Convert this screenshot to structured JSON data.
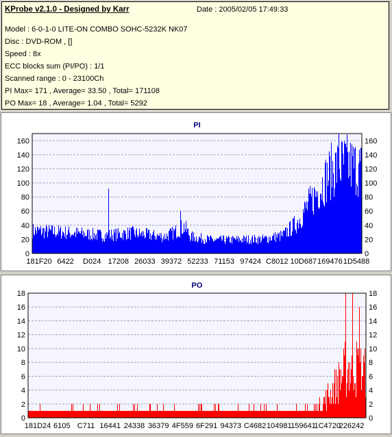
{
  "header": {
    "title": "KProbe v2.1.0 - Designed by Karr",
    "date": "Date : 2005/02/05 17:49:33",
    "lines": [
      "Model : 6-0-1-0 LITE-ON COMBO SOHC-5232K NK07",
      "Disc : DVD-ROM ,  []",
      "Speed : 8x",
      "ECC blocks sum (PI/PO) : 1/1",
      "Scanned range : 0 - 23100Ch",
      "PI Max= 171 , Average= 33.50 , Total= 171108",
      "PO Max= 18 , Average= 1.04 , Total= 5292"
    ]
  },
  "chart_data": [
    {
      "type": "bar",
      "title": "PI",
      "color": "#0000ff",
      "ylim": [
        0,
        170
      ],
      "yticks": [
        0,
        20,
        40,
        60,
        80,
        100,
        120,
        140,
        160
      ],
      "xtick_labels": [
        "181F20",
        "6422",
        "D024",
        "17208",
        "26033",
        "39372",
        "52233",
        "71153",
        "97424",
        "C8012",
        "10D687",
        "169476",
        "1D5488"
      ],
      "profile": [
        [
          0,
          38
        ],
        [
          0.1,
          35
        ],
        [
          0.22,
          30
        ],
        [
          0.3,
          34
        ],
        [
          0.4,
          28
        ],
        [
          0.43,
          35
        ],
        [
          0.46,
          45
        ],
        [
          0.48,
          28
        ],
        [
          0.55,
          22
        ],
        [
          0.7,
          24
        ],
        [
          0.76,
          30
        ],
        [
          0.8,
          50
        ],
        [
          0.86,
          100
        ],
        [
          0.91,
          140
        ],
        [
          0.95,
          150
        ],
        [
          1,
          140
        ]
      ],
      "spikes": [
        [
          0.23,
          92
        ],
        [
          0.45,
          60
        ],
        [
          0.93,
          171
        ]
      ],
      "grid": true,
      "stats": {
        "max": 171,
        "average": 33.5,
        "total": 171108
      }
    },
    {
      "type": "bar",
      "title": "PO",
      "color": "#ff0000",
      "ylim": [
        0,
        18
      ],
      "yticks": [
        0,
        2,
        4,
        6,
        8,
        10,
        12,
        14,
        16,
        18
      ],
      "xtick_labels": [
        "181D24",
        "6105",
        "C711",
        "16441",
        "24338",
        "36379",
        "4F559",
        "6F291",
        "94373",
        "C4682",
        "104981",
        "159641",
        "1C4720",
        "226242"
      ],
      "profile": [
        [
          0,
          1
        ],
        [
          0.82,
          1
        ],
        [
          0.86,
          2
        ],
        [
          0.9,
          5
        ],
        [
          0.93,
          8
        ],
        [
          0.96,
          10
        ],
        [
          1,
          8
        ]
      ],
      "spikes": [
        [
          0.94,
          18
        ],
        [
          0.96,
          18
        ],
        [
          0.98,
          16
        ]
      ],
      "grid": true,
      "stats": {
        "max": 18,
        "average": 1.04,
        "total": 5292
      }
    }
  ]
}
